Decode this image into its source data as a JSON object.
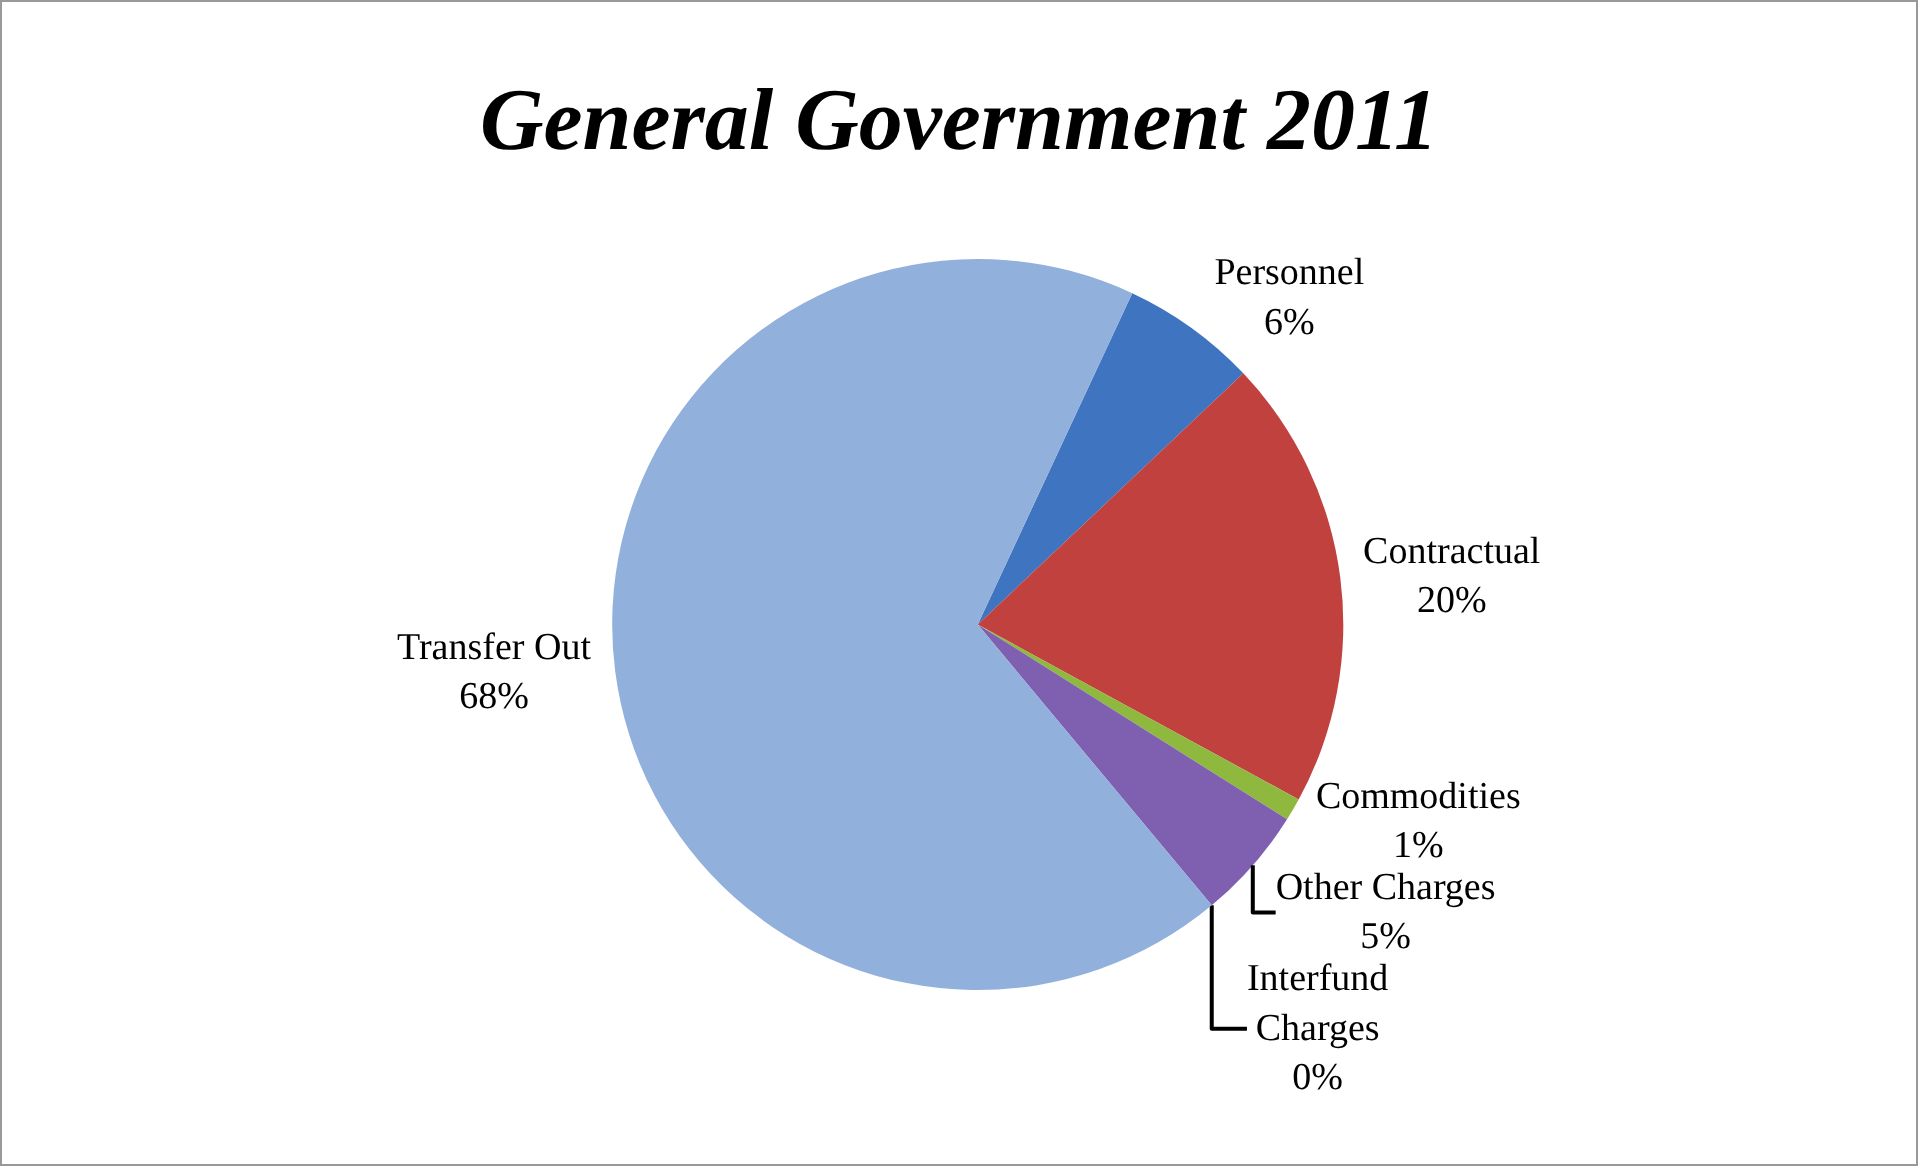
{
  "chart_data": {
    "type": "pie",
    "title": "General Government 2011",
    "categories": [
      "Personnel",
      "Contractual",
      "Commodities",
      "Other Charges",
      "Interfund Charges",
      "Transfer Out"
    ],
    "values": [
      6,
      20,
      1,
      5,
      0,
      68
    ],
    "value_labels": [
      "6%",
      "20%",
      "1%",
      "5%",
      "0%",
      "68%"
    ],
    "colors": [
      "#3f74c0",
      "#c0413e",
      "#8fb83f",
      "#7f5fb0",
      "#3fa9c9",
      "#92b0dc"
    ],
    "legend": false
  }
}
